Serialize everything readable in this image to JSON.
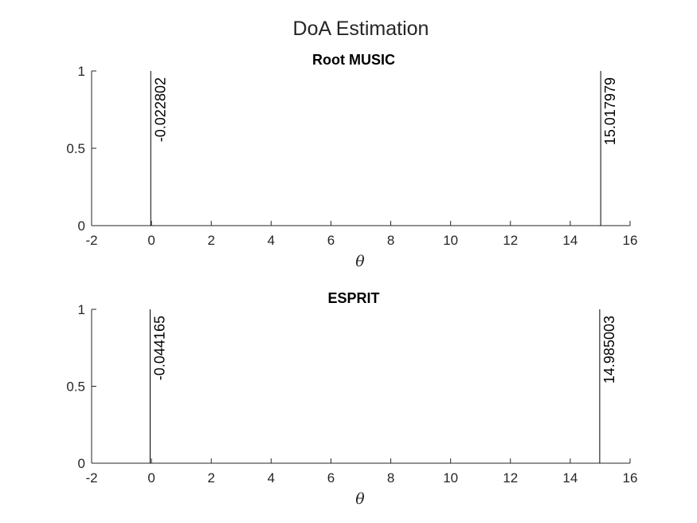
{
  "figure_title": "DoA Estimation",
  "chart_data": [
    {
      "type": "stem",
      "title": "Root MUSIC",
      "xlabel": "θ",
      "ylabel": "",
      "xlim": [
        -2,
        16
      ],
      "ylim": [
        0,
        1
      ],
      "xticks": [
        "-2",
        "0",
        "2",
        "4",
        "6",
        "8",
        "10",
        "12",
        "14",
        "16"
      ],
      "yticks": [
        "0",
        "0.5",
        "1"
      ],
      "grid": false,
      "legend": "none",
      "points": [
        {
          "x": -0.022802,
          "y": 1,
          "label": "-0.022802"
        },
        {
          "x": 15.017979,
          "y": 1,
          "label": "15.017979"
        }
      ]
    },
    {
      "type": "stem",
      "title": "ESPRIT",
      "xlabel": "θ",
      "ylabel": "",
      "xlim": [
        -2,
        16
      ],
      "ylim": [
        0,
        1
      ],
      "xticks": [
        "-2",
        "0",
        "2",
        "4",
        "6",
        "8",
        "10",
        "12",
        "14",
        "16"
      ],
      "yticks": [
        "0",
        "0.5",
        "1"
      ],
      "grid": false,
      "legend": "none",
      "points": [
        {
          "x": -0.044165,
          "y": 1,
          "label": "-0.044165"
        },
        {
          "x": 14.985003,
          "y": 1,
          "label": "14.985003"
        }
      ]
    }
  ]
}
